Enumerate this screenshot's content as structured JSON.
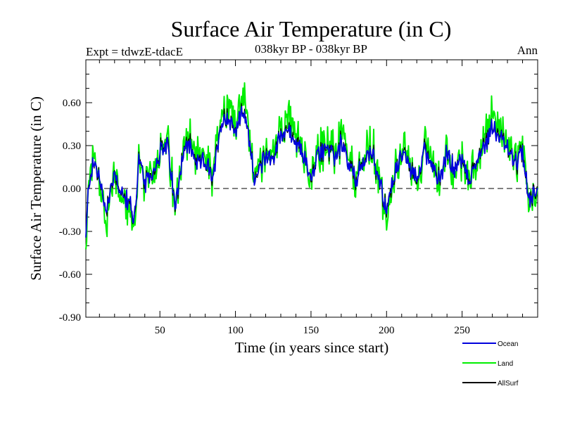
{
  "chart_data": {
    "type": "line",
    "title": "Surface Air Temperature (in C)",
    "subtitle": "038kyr BP - 038kyr BP",
    "left_label": "Expt = tdwzE-tdacE",
    "right_label": "Ann",
    "xlabel": "Time (in years since start)",
    "ylabel": "Surface Air Temperature (in C)",
    "xlim": [
      1,
      300
    ],
    "ylim": [
      -0.9,
      0.9
    ],
    "xticks": [
      50,
      100,
      150,
      200,
      250
    ],
    "xtick_labels": [
      "50",
      "100",
      "150",
      "200",
      "250"
    ],
    "yticks": [
      -0.9,
      -0.6,
      -0.3,
      0.0,
      0.3,
      0.6
    ],
    "ytick_labels": [
      "-0.90",
      "-0.60",
      "-0.30",
      "0.00",
      "0.30",
      "0.60"
    ],
    "zero_line": true,
    "legend_position": "bottom-right",
    "colors": {
      "Ocean": "#0000dd",
      "Land": "#00ee00",
      "AllSurf": "#000000"
    },
    "series": [
      {
        "name": "Ocean",
        "color": "#0000dd"
      },
      {
        "name": "Land",
        "color": "#00ee00"
      },
      {
        "name": "AllSurf",
        "color": "#000000"
      }
    ],
    "anchors": {
      "x": [
        1,
        3,
        6,
        9,
        12,
        15,
        20,
        25,
        30,
        33,
        36,
        40,
        45,
        50,
        55,
        58,
        60,
        65,
        70,
        75,
        80,
        85,
        90,
        95,
        100,
        105,
        110,
        113,
        120,
        125,
        130,
        135,
        140,
        145,
        150,
        155,
        160,
        165,
        170,
        175,
        180,
        185,
        190,
        195,
        200,
        205,
        210,
        215,
        220,
        225,
        230,
        235,
        240,
        245,
        250,
        255,
        260,
        265,
        270,
        275,
        280,
        285,
        290,
        295,
        300
      ],
      "ocean": [
        -0.35,
        0.05,
        0.18,
        0.12,
        -0.05,
        -0.15,
        0.12,
        -0.05,
        -0.1,
        -0.22,
        0.2,
        0.02,
        0.1,
        0.25,
        0.3,
        0.05,
        -0.15,
        0.25,
        0.3,
        0.15,
        0.2,
        0.05,
        0.45,
        0.5,
        0.4,
        0.55,
        0.3,
        0.05,
        0.25,
        0.2,
        0.38,
        0.42,
        0.3,
        0.25,
        0.05,
        0.25,
        0.3,
        0.2,
        0.32,
        0.15,
        0.05,
        0.2,
        0.25,
        0.1,
        -0.18,
        0.1,
        0.25,
        0.15,
        0.05,
        0.28,
        0.18,
        0.05,
        0.25,
        0.12,
        0.2,
        0.05,
        0.2,
        0.3,
        0.45,
        0.35,
        0.28,
        0.15,
        0.25,
        -0.1,
        0.05
      ]
    },
    "noise_amplitude": {
      "ocean": 0.12,
      "land": 0.22,
      "allsurf": 0.05
    },
    "land_gain": 1.25
  },
  "legend_items": [
    "Ocean",
    "Land",
    "AllSurf"
  ]
}
